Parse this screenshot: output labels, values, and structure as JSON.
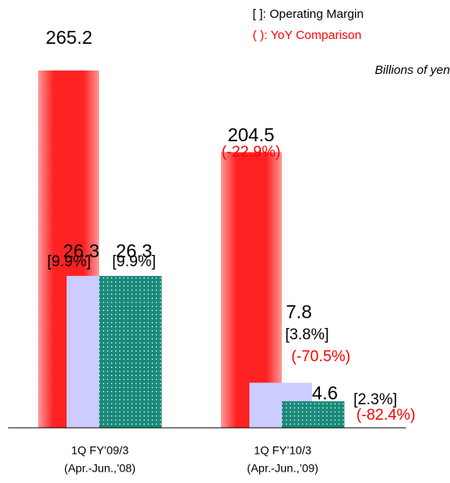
{
  "chart_data": {
    "type": "bar",
    "notes": [
      "[ ]: Operating Margin",
      "( ): YoY Comparison"
    ],
    "unit": "Billions of yen",
    "categories": [
      [
        "1Q FY’09/3",
        "(Apr.-Jun.,’08)"
      ],
      [
        "1Q FY’10/3",
        "(Apr.-Jun.,’09)"
      ]
    ],
    "ylim": [
      0,
      300
    ],
    "y2lim": [
      0,
      70
    ],
    "series": [
      {
        "color": "#ff3333",
        "values": [
          265.2,
          204.5
        ],
        "yoy": [
          null,
          "(-22.9%)"
        ]
      },
      {
        "color": "#ccccff",
        "axis": "y2",
        "values": [
          26.3,
          7.8
        ],
        "margin": [
          "[9.9%]",
          "[3.8%]"
        ],
        "yoy": [
          null,
          "(-70.5%)"
        ]
      },
      {
        "color": "#1a8a7a",
        "axis": "y2",
        "values": [
          26.3,
          4.6
        ],
        "margin": [
          "[9.9%]",
          "[2.3%]"
        ],
        "yoy": [
          null,
          "(-82.4%)"
        ]
      }
    ]
  }
}
